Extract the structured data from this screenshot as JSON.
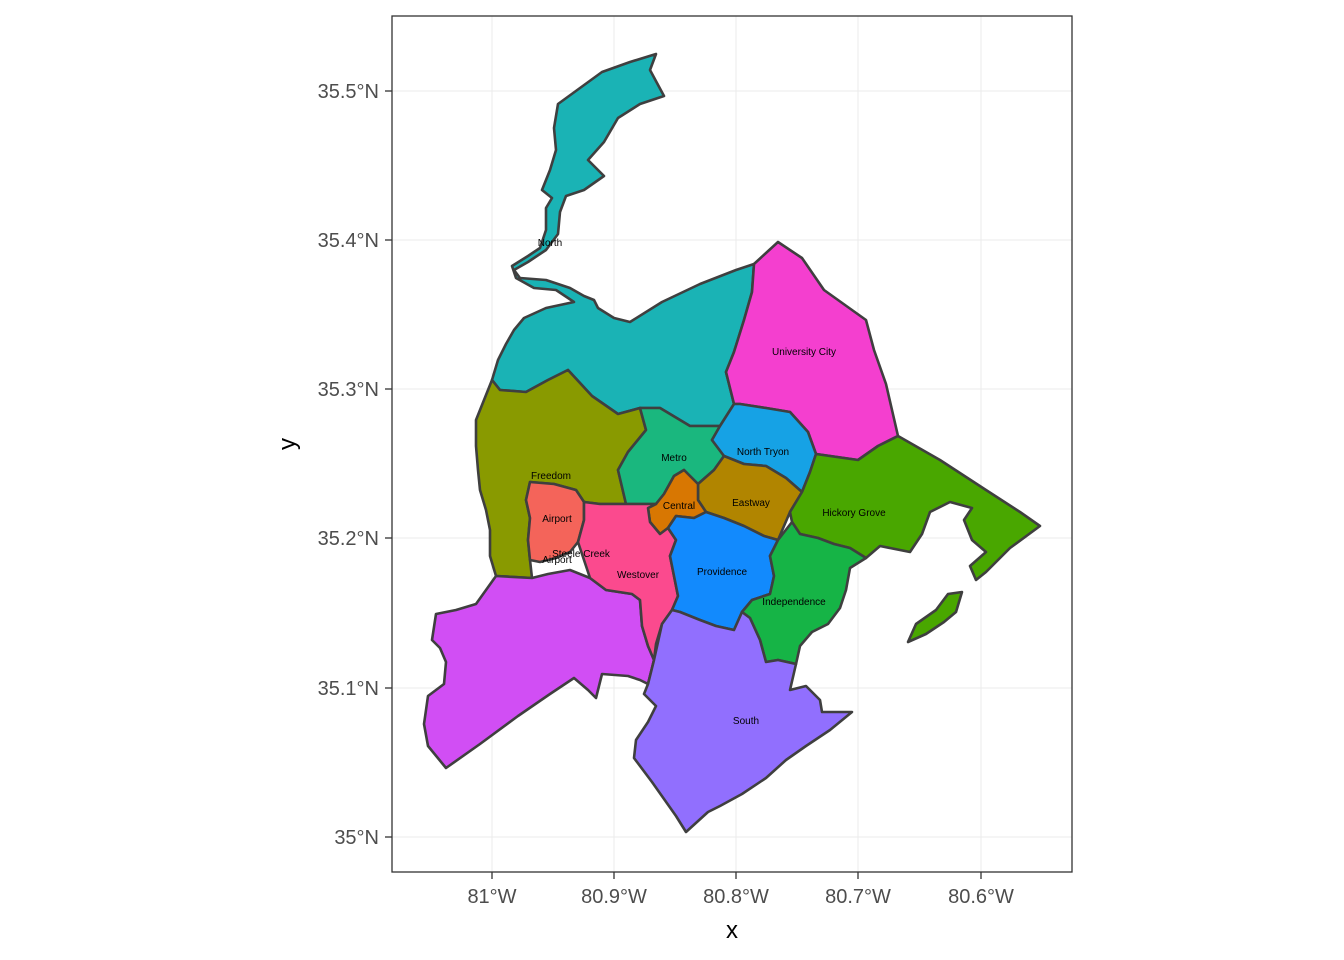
{
  "map": {
    "x_axis": {
      "title": "x",
      "ticks": [
        "81°W",
        "80.9°W",
        "80.8°W",
        "80.7°W",
        "80.6°W"
      ]
    },
    "y_axis": {
      "title": "y",
      "ticks": [
        "35°N",
        "35.1°N",
        "35.2°N",
        "35.3°N",
        "35.4°N",
        "35.5°N"
      ]
    },
    "regions": [
      {
        "key": "north",
        "label": "North",
        "color": "#1ab3b5"
      },
      {
        "key": "university",
        "label": "University City",
        "color": "#f43fcf"
      },
      {
        "key": "freedom",
        "label": "Freedom",
        "color": "#899a00"
      },
      {
        "key": "metro",
        "label": "Metro",
        "color": "#1ab77e"
      },
      {
        "key": "northtryon",
        "label": "North Tryon",
        "color": "#16a2e5"
      },
      {
        "key": "central",
        "label": "Central",
        "color": "#d87702"
      },
      {
        "key": "eastway",
        "label": "Eastway",
        "color": "#b18500"
      },
      {
        "key": "hickory",
        "label": "Hickory Grove",
        "color": "#49a700"
      },
      {
        "key": "airport",
        "label": "Airport",
        "color": "#f4645a"
      },
      {
        "key": "steelecreek",
        "label": "Steele Creek",
        "color": "#d14ef4"
      },
      {
        "key": "westover",
        "label": "Westover",
        "color": "#fb4a8e"
      },
      {
        "key": "providence",
        "label": "Providence",
        "color": "#128afd"
      },
      {
        "key": "independence",
        "label": "Independence",
        "color": "#16b446"
      },
      {
        "key": "south",
        "label": "South",
        "color": "#916ffe"
      }
    ],
    "extra_labels": [
      {
        "key": "airport2",
        "label": "Airport"
      }
    ]
  }
}
